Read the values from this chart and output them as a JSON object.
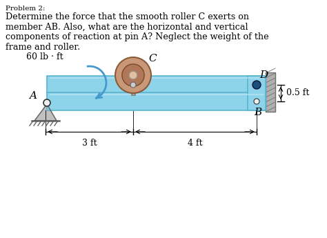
{
  "title_label": "Problem 2:",
  "line1": "Determine the force that the smooth roller C exerts on",
  "line2": "member AB. Also, what are the horizontal and vertical",
  "line3": "components of reaction at pin A? Neglect the weight of the",
  "line4": "frame and roller.",
  "bg_color": "#ffffff",
  "frame_color": "#8dd4ea",
  "frame_edge": "#5ab4d0",
  "frame_inner": "#b8e4f2",
  "roller_outer": "#c89878",
  "roller_mid": "#b07858",
  "roller_hub": "#e0c0a0",
  "pin_blue": "#1a5080",
  "pin_white": "#f0f0f0",
  "wall_fill": "#b0b0b0",
  "wall_edge": "#707070",
  "support_fill": "#c0c0c0",
  "support_edge": "#606060",
  "arrow_blue": "#4499cc",
  "dim_color": "#000000",
  "moment_label": "60 lb · ft",
  "label_A": "A",
  "label_B": "B",
  "label_C": "C",
  "label_D": "D",
  "dim_3ft": "3 ft",
  "dim_4ft": "4 ft",
  "dim_05ft": "0.5 ft",
  "figw": 4.74,
  "figh": 3.45,
  "dpi": 100
}
